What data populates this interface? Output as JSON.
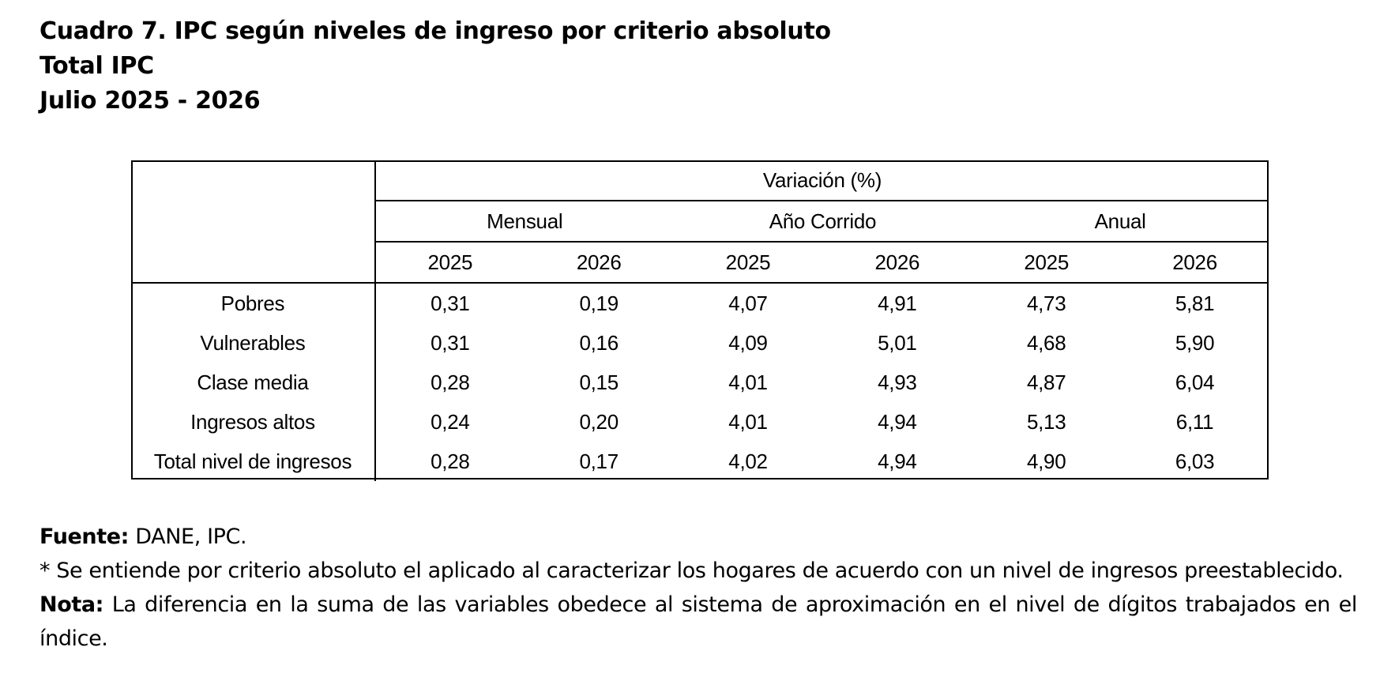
{
  "title": {
    "line1": "Cuadro 7. IPC según niveles de ingreso por criterio absoluto",
    "line2": "Total IPC",
    "line3": "Julio 2025 - 2026"
  },
  "table": {
    "top_header": "Variación (%)",
    "groups": [
      "Mensual",
      "Año Corrido",
      "Anual"
    ],
    "years": [
      "2025",
      "2026",
      "2025",
      "2026",
      "2025",
      "2026"
    ],
    "rows": [
      {
        "label": "Pobres",
        "values": [
          "0,31",
          "0,19",
          "4,07",
          "4,91",
          "4,73",
          "5,81"
        ]
      },
      {
        "label": "Vulnerables",
        "values": [
          "0,31",
          "0,16",
          "4,09",
          "5,01",
          "4,68",
          "5,90"
        ]
      },
      {
        "label": "Clase media",
        "values": [
          "0,28",
          "0,15",
          "4,01",
          "4,93",
          "4,87",
          "6,04"
        ]
      },
      {
        "label": "Ingresos altos",
        "values": [
          "0,24",
          "0,20",
          "4,01",
          "4,94",
          "5,13",
          "6,11"
        ]
      },
      {
        "label": "Total nivel de ingresos",
        "values": [
          "0,28",
          "0,17",
          "4,02",
          "4,94",
          "4,90",
          "6,03"
        ]
      }
    ]
  },
  "notes": {
    "source_label": "Fuente:",
    "source_text": " DANE, IPC.",
    "footnote": "* Se entiende por criterio absoluto el aplicado al caracterizar los hogares de acuerdo con un nivel de ingresos preestablecido.",
    "note_label": "Nota:",
    "note_text": " La diferencia en la suma de las variables obedece al sistema de aproximación en el nivel de dígitos trabajados en el índice."
  }
}
